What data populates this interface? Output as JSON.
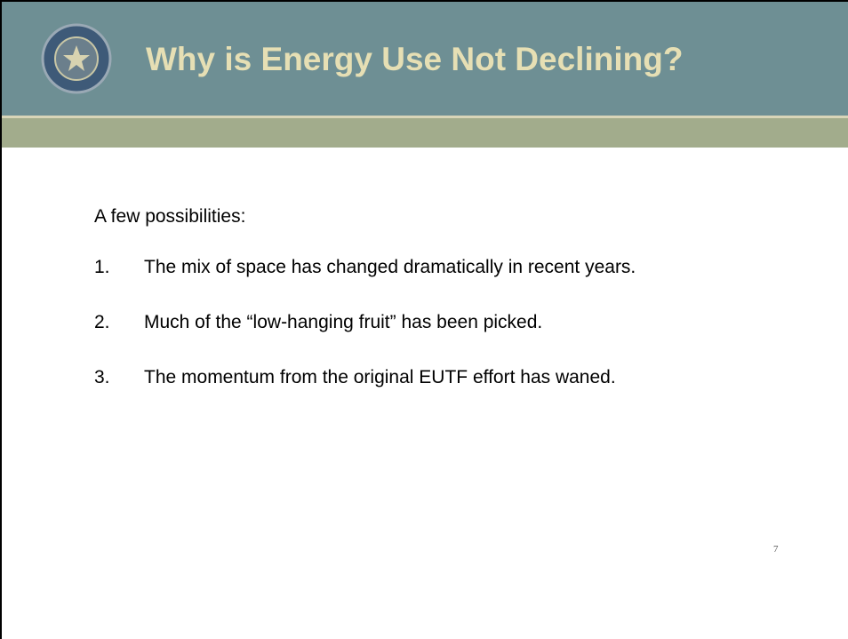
{
  "header": {
    "title": "Why is Energy Use Not Declining?"
  },
  "body": {
    "intro": "A few possibilities:",
    "items": [
      {
        "number": "1.",
        "text": "The mix of space has changed dramatically in recent years."
      },
      {
        "number": "2.",
        "text": "Much of the “low-hanging fruit” has been picked."
      },
      {
        "number": "3.",
        "text": "The momentum from the original EUTF effort has waned."
      }
    ]
  },
  "page_number": "7"
}
